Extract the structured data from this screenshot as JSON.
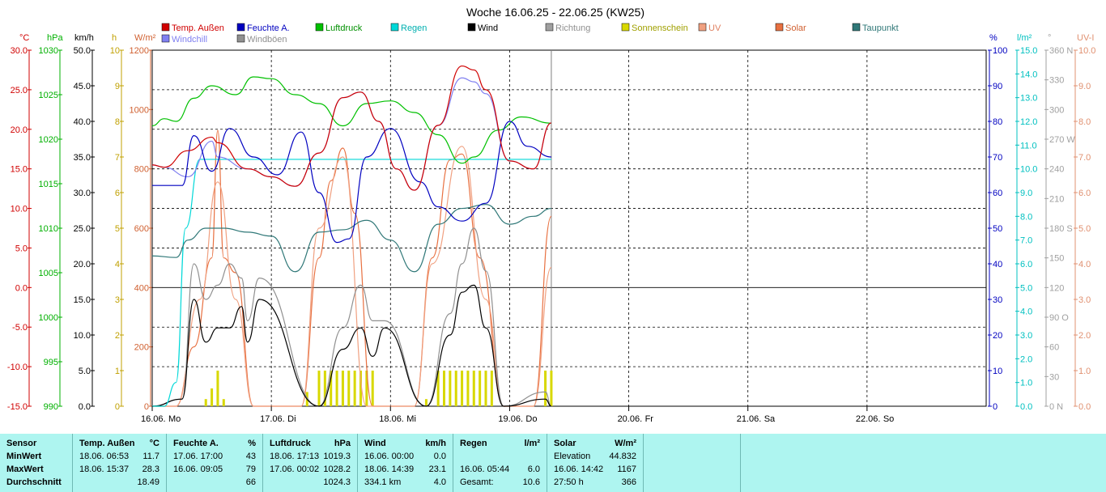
{
  "title": "Woche 16.06.25 - 22.06.25 (KW25)",
  "colors": {
    "temp": "#d00000",
    "humidity": "#0000c0",
    "pressure": "#00c000",
    "rain": "#00d8d8",
    "wind": "#000000",
    "direction": "#a0a0a0",
    "sunshine": "#d8d800",
    "uv": "#f0a080",
    "solar": "#e87040",
    "dewpoint": "#307878",
    "windchill": "#8080f0",
    "gusts": "#909090",
    "table_bg": "#aef5f0"
  },
  "legend": [
    {
      "label": "Temp. Außen",
      "color": "#d00000"
    },
    {
      "label": "Feuchte A.",
      "color": "#0000c0"
    },
    {
      "label": "Luftdruck",
      "color": "#00c000"
    },
    {
      "label": "Regen",
      "color": "#00d8d8"
    },
    {
      "label": "Wind",
      "color": "#000000"
    },
    {
      "label": "Richtung",
      "color": "#a0a0a0"
    },
    {
      "label": "Sonnenschein",
      "color": "#d8d800"
    },
    {
      "label": "UV",
      "color": "#f0a080"
    },
    {
      "label": "Solar",
      "color": "#e87040"
    },
    {
      "label": "Taupunkt",
      "color": "#307878"
    },
    {
      "label": "Windchill",
      "color": "#8080f0"
    },
    {
      "label": "Windböen",
      "color": "#909090"
    }
  ],
  "chart_data": {
    "type": "line",
    "title": "Woche 16.06.25 - 22.06.25 (KW25)",
    "grid": true,
    "x_ticks": [
      {
        "date": "16.06.",
        "day": "Mo"
      },
      {
        "date": "17.06.",
        "day": "Di"
      },
      {
        "date": "18.06.",
        "day": "Mi"
      },
      {
        "date": "19.06.",
        "day": "Do"
      },
      {
        "date": "20.06.",
        "day": "Fr"
      },
      {
        "date": "21.06.",
        "day": "Sa"
      },
      {
        "date": "22.06.",
        "day": "So"
      }
    ],
    "axes": {
      "temp": {
        "unit": "°C",
        "range": [
          -15,
          30
        ],
        "ticks": [
          "30.0",
          "25.0",
          "20.0",
          "15.0",
          "10.0",
          "5.0",
          "0.0",
          "-5.0",
          "-10.0",
          "-15.0"
        ]
      },
      "pressure": {
        "unit": "hPa",
        "range": [
          990,
          1030
        ],
        "ticks": [
          "1030",
          "1025",
          "1020",
          "1015",
          "1010",
          "1005",
          "1000",
          "995",
          "990"
        ]
      },
      "wind": {
        "unit": "km/h",
        "range": [
          0,
          50
        ],
        "ticks": [
          "50.0",
          "45.0",
          "40.0",
          "35.0",
          "30.0",
          "25.0",
          "20.0",
          "15.0",
          "10.0",
          "5.0",
          "0.0"
        ]
      },
      "sunshine": {
        "unit": "h",
        "range": [
          0,
          10
        ],
        "ticks": [
          "10",
          "9",
          "8",
          "7",
          "6",
          "5",
          "4",
          "3",
          "2",
          "1",
          "0"
        ]
      },
      "solar": {
        "unit": "W/m²",
        "range": [
          0,
          1200
        ],
        "ticks": [
          "1200",
          "1000",
          "800",
          "600",
          "400",
          "200",
          "0"
        ]
      },
      "humidity": {
        "unit": "%",
        "range": [
          0,
          100
        ],
        "ticks": [
          "100",
          "90",
          "80",
          "70",
          "60",
          "50",
          "40",
          "30",
          "20",
          "10",
          "0"
        ]
      },
      "rain": {
        "unit": "l/m²",
        "range": [
          0,
          15
        ],
        "ticks": [
          "15.0",
          "14.0",
          "13.0",
          "12.0",
          "11.0",
          "10.0",
          "9.0",
          "8.0",
          "7.0",
          "6.0",
          "5.0",
          "4.0",
          "3.0",
          "2.0",
          "1.0",
          "0.0"
        ]
      },
      "direction": {
        "unit": "°",
        "range": [
          0,
          360
        ],
        "ticks": [
          "360 N",
          "330",
          "300",
          "270 W",
          "240",
          "210",
          "180 S",
          "150",
          "120",
          "90 O",
          "60",
          "30",
          "0 N"
        ]
      },
      "uv": {
        "unit": "UV-I",
        "range": [
          0,
          10
        ],
        "ticks": [
          "10.0",
          "9.0",
          "8.0",
          "7.0",
          "6.0",
          "5.0",
          "4.0",
          "3.0",
          "2.0",
          "1.0",
          "0.0"
        ]
      }
    },
    "series": [
      {
        "name": "Temp. Außen",
        "axis": "temp",
        "x": [
          0,
          0.1,
          0.3,
          0.5,
          0.55,
          0.8,
          1.0,
          1.2,
          1.4,
          1.6,
          1.75,
          1.9,
          2.05,
          2.2,
          2.4,
          2.6,
          2.7,
          2.8,
          3.0,
          3.2,
          3.35
        ],
        "values": [
          15.5,
          15.2,
          17.3,
          19.0,
          18.3,
          15.0,
          14.0,
          12.8,
          17.0,
          24.0,
          24.7,
          21.0,
          15.0,
          12.3,
          20.5,
          28.0,
          27.5,
          25.0,
          16.0,
          15.0,
          20.8
        ]
      },
      {
        "name": "Feuchte A.",
        "axis": "humidity",
        "x": [
          0,
          0.25,
          0.35,
          0.5,
          0.65,
          0.85,
          1.05,
          1.25,
          1.4,
          1.55,
          1.65,
          1.8,
          2.0,
          2.25,
          2.4,
          2.6,
          2.8,
          3.0,
          3.15,
          3.35
        ],
        "values": [
          62,
          62,
          76,
          66,
          78,
          70,
          65,
          77,
          60,
          46,
          47,
          70,
          78,
          63,
          56,
          52,
          57,
          80,
          73,
          70
        ]
      },
      {
        "name": "Luftdruck",
        "axis": "pressure",
        "values_x": [
          0,
          0.1,
          0.2,
          0.35,
          0.5,
          0.7,
          0.85,
          1.0,
          1.2,
          1.4,
          1.6,
          1.8,
          2.0,
          2.2,
          2.4,
          2.6,
          2.7,
          2.9,
          3.1,
          3.35
        ],
        "values": [
          1021.5,
          1022.3,
          1022.0,
          1024.6,
          1026.0,
          1025.0,
          1027.0,
          1026.8,
          1025.0,
          1024.0,
          1021.5,
          1024.0,
          1024.3,
          1023.0,
          1020.5,
          1017.3,
          1018.0,
          1021.0,
          1022.5,
          1021.8
        ]
      },
      {
        "name": "Regen",
        "axis": "rain",
        "x": [
          0,
          0.1,
          0.2,
          0.28,
          0.4,
          3.35
        ],
        "values": [
          0,
          0,
          1.0,
          7.5,
          10.4,
          10.4
        ]
      },
      {
        "name": "Wind",
        "axis": "wind",
        "x": [
          0,
          0.25,
          0.35,
          0.45,
          0.55,
          0.65,
          0.75,
          0.8,
          0.9,
          1.4,
          1.6,
          1.75,
          1.85,
          1.95,
          2.3,
          2.5,
          2.6,
          2.7,
          2.8,
          2.95,
          3.3,
          3.35
        ],
        "values": [
          0,
          1,
          15,
          9,
          11,
          11,
          14,
          9,
          15,
          0,
          8,
          11,
          7,
          11,
          0,
          10,
          16,
          17,
          11,
          0,
          1,
          0
        ]
      },
      {
        "name": "Windböen",
        "axis": "wind",
        "x": [
          0,
          0.25,
          0.35,
          0.45,
          0.55,
          0.65,
          0.75,
          0.8,
          0.9,
          1.4,
          1.6,
          1.75,
          1.85,
          1.95,
          2.3,
          2.5,
          2.6,
          2.7,
          2.8,
          2.95,
          3.3,
          3.35
        ],
        "values": [
          0,
          1,
          20,
          15,
          17,
          20,
          18,
          12,
          18,
          0,
          11,
          17,
          12,
          12,
          0,
          13,
          20,
          25,
          19,
          0,
          2,
          0
        ]
      },
      {
        "name": "Taupunkt",
        "axis": "temp",
        "x": [
          0,
          0.2,
          0.3,
          0.45,
          0.6,
          0.8,
          1.0,
          1.2,
          1.4,
          1.6,
          1.8,
          2.0,
          2.2,
          2.4,
          2.6,
          2.8,
          3.0,
          3.2,
          3.35
        ],
        "values": [
          4,
          3.8,
          6,
          7.5,
          7.5,
          7.0,
          6.5,
          2.0,
          7.0,
          7.3,
          8.5,
          6.0,
          2.0,
          8.0,
          10.0,
          10.5,
          8.0,
          9.0,
          10.0
        ]
      },
      {
        "name": "Windchill",
        "axis": "temp",
        "x": [
          0,
          0.1,
          0.3,
          0.5,
          0.55,
          0.8,
          1.0,
          1.2,
          1.4,
          1.6,
          1.75,
          1.9,
          2.05,
          2.2,
          2.4,
          2.6,
          2.7,
          2.8,
          3.0,
          3.2,
          3.35
        ],
        "values": [
          15.5,
          15.2,
          14.0,
          18.5,
          16.5,
          15.0,
          14.0,
          12.8,
          17.0,
          24.0,
          24.7,
          21.0,
          15.0,
          12.3,
          20.5,
          26.5,
          26.0,
          24.5,
          16.0,
          15.0,
          20.8
        ]
      },
      {
        "name": "Solar",
        "axis": "solar",
        "x": [
          0,
          0.2,
          0.35,
          0.5,
          0.55,
          0.6,
          0.7,
          0.85,
          1.25,
          1.4,
          1.5,
          1.6,
          1.7,
          1.85,
          2.2,
          2.35,
          2.5,
          2.6,
          2.75,
          2.95,
          3.2,
          3.35
        ],
        "values": [
          0,
          0,
          200,
          500,
          930,
          500,
          450,
          0,
          0,
          500,
          760,
          870,
          650,
          0,
          0,
          500,
          830,
          850,
          500,
          0,
          0,
          640
        ]
      },
      {
        "name": "UV",
        "axis": "uv",
        "x": [
          0,
          0.2,
          0.4,
          0.55,
          0.7,
          0.85,
          1.25,
          1.4,
          1.6,
          1.8,
          2.2,
          2.35,
          2.6,
          2.8,
          2.95,
          3.2,
          3.35
        ],
        "values": [
          0,
          0,
          3.0,
          6.3,
          3.0,
          0,
          0,
          5.0,
          7.0,
          0,
          0,
          4.0,
          7.3,
          3.0,
          0,
          0,
          3.9
        ]
      },
      {
        "name": "Sonnenschein",
        "axis": "sunshine",
        "type": "bar",
        "x": [
          0.45,
          0.5,
          0.55,
          0.6,
          1.3,
          1.4,
          1.45,
          1.5,
          1.55,
          1.6,
          1.65,
          1.7,
          1.75,
          1.8,
          1.85,
          2.3,
          2.4,
          2.45,
          2.5,
          2.55,
          2.6,
          2.65,
          2.7,
          2.75,
          2.8,
          2.85,
          3.3,
          3.35
        ],
        "values": [
          0.2,
          0.5,
          1.0,
          0.2,
          0.4,
          1,
          1,
          1,
          1,
          1,
          1,
          1,
          1,
          1,
          1,
          0.2,
          1,
          1,
          1,
          1,
          1,
          1,
          1,
          1,
          1,
          1,
          1,
          1
        ]
      }
    ]
  },
  "table": {
    "columns": [
      {
        "title": "Sensor",
        "unit": "",
        "rows": [
          "MinWert",
          "MaxWert",
          "Durchschnitt"
        ]
      },
      {
        "title": "Temp. Außen",
        "unit": "°C",
        "rows": [
          [
            "18.06.  06:53",
            "11.7"
          ],
          [
            "18.06.  15:37",
            "28.3"
          ],
          [
            "",
            "18.49"
          ]
        ]
      },
      {
        "title": "Feuchte A.",
        "unit": "%",
        "rows": [
          [
            "17.06.  17:00",
            "43"
          ],
          [
            "16.06.  09:05",
            "79"
          ],
          [
            "",
            "66"
          ]
        ]
      },
      {
        "title": "Luftdruck",
        "unit": "hPa",
        "rows": [
          [
            "18.06.  17:13",
            "1019.3"
          ],
          [
            "17.06.  00:02",
            "1028.2"
          ],
          [
            "",
            "1024.3"
          ]
        ]
      },
      {
        "title": "Wind",
        "unit": "km/h",
        "rows": [
          [
            "16.06.  00:00",
            "0.0"
          ],
          [
            "18.06.  14:39",
            "23.1"
          ],
          [
            "334.1 km",
            "4.0"
          ]
        ]
      },
      {
        "title": "Regen",
        "unit": "l/m²",
        "rows": [
          [
            "",
            ""
          ],
          [
            "16.06.  05:44",
            "6.0"
          ],
          [
            "Gesamt:",
            "10.6"
          ]
        ]
      },
      {
        "title": "Solar",
        "unit": "W/m²",
        "rows": [
          [
            "Elevation",
            "44.832"
          ],
          [
            "16.06.  14:42",
            "1167"
          ],
          [
            "27:50 h",
            "366"
          ]
        ]
      }
    ]
  }
}
